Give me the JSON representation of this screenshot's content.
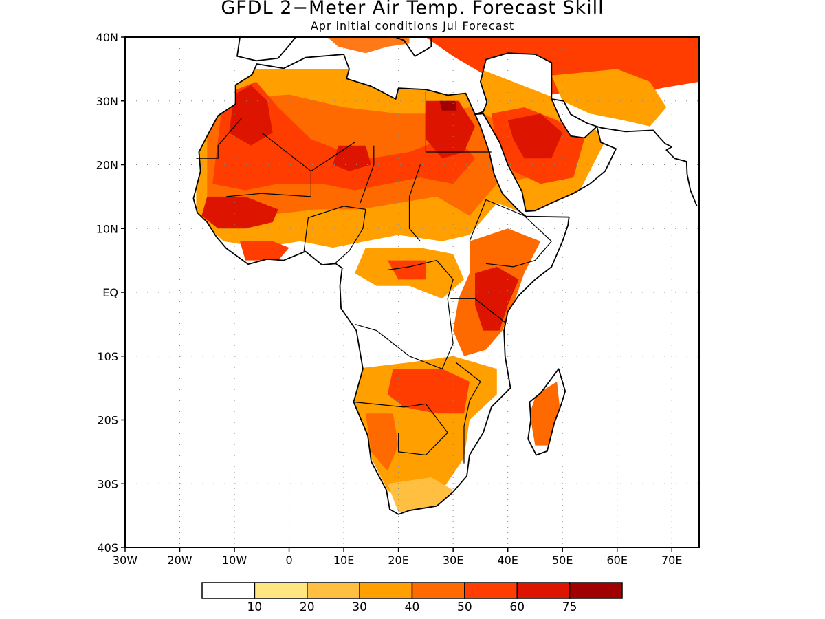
{
  "title": "GFDL 2−Meter Air Temp. Forecast Skill",
  "subtitle": "Apr initial conditions  Jul Forecast",
  "map": {
    "lon_range": [
      -30,
      75
    ],
    "lat_range": [
      -40,
      40
    ],
    "y_ticks": [
      {
        "value": 40,
        "label": "40N"
      },
      {
        "value": 30,
        "label": "30N"
      },
      {
        "value": 20,
        "label": "20N"
      },
      {
        "value": 10,
        "label": "10N"
      },
      {
        "value": 0,
        "label": "EQ"
      },
      {
        "value": -10,
        "label": "10S"
      },
      {
        "value": -20,
        "label": "20S"
      },
      {
        "value": -30,
        "label": "30S"
      },
      {
        "value": -40,
        "label": "40S"
      }
    ],
    "x_ticks": [
      {
        "value": -30,
        "label": "30W"
      },
      {
        "value": -20,
        "label": "20W"
      },
      {
        "value": -10,
        "label": "10W"
      },
      {
        "value": 0,
        "label": "0"
      },
      {
        "value": 10,
        "label": "10E"
      },
      {
        "value": 20,
        "label": "20E"
      },
      {
        "value": 30,
        "label": "30E"
      },
      {
        "value": 40,
        "label": "40E"
      },
      {
        "value": 50,
        "label": "50E"
      },
      {
        "value": 60,
        "label": "60E"
      },
      {
        "value": 70,
        "label": "70E"
      }
    ],
    "grid": true
  },
  "legend": {
    "colors": [
      "#ffffff",
      "#ffe680",
      "#ffbf40",
      "#ff9f00",
      "#ff6a00",
      "#ff3d00",
      "#dd1500",
      "#a00000"
    ],
    "labels": [
      "10",
      "20",
      "30",
      "40",
      "50",
      "60",
      "75"
    ]
  }
}
